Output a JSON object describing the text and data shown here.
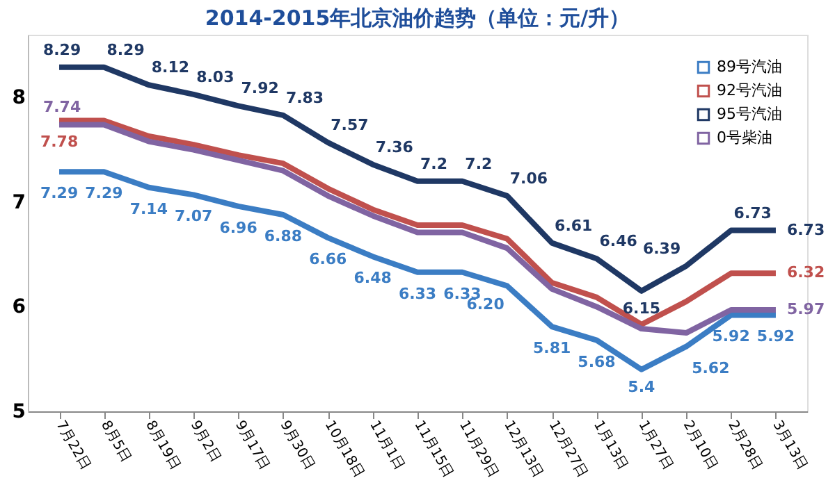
{
  "chart_data": {
    "type": "line",
    "title": "2014-2015年北京油价趋势（单位：元/升）",
    "categories": [
      "7月22日",
      "8月5日",
      "8月19日",
      "9月2日",
      "9月17日",
      "9月30日",
      "10月18日",
      "11月1日",
      "11月15日",
      "11月29日",
      "12月13日",
      "12月27日",
      "1月13日",
      "1月27日",
      "2月10日",
      "2月28日",
      "3月13日"
    ],
    "series": [
      {
        "name": "89号汽油",
        "color": "#3b7dc4",
        "values": [
          7.29,
          7.29,
          7.14,
          7.07,
          6.96,
          6.88,
          6.66,
          6.48,
          6.33,
          6.33,
          6.2,
          5.81,
          5.68,
          5.4,
          5.62,
          5.92,
          5.92
        ],
        "value_labels": [
          "7.29",
          "7.29",
          "7.14",
          "7.07",
          "6.96",
          "6.88",
          "6.66",
          "6.48",
          "6.33",
          "6.33",
          "6.20",
          "5.81",
          "5.68",
          "5.4",
          "5.62",
          "5.92",
          "5.92"
        ]
      },
      {
        "name": "92号汽油",
        "color": "#c0504d",
        "values": [
          7.78,
          7.78,
          7.63,
          7.55,
          7.45,
          7.37,
          7.13,
          6.93,
          6.78,
          6.78,
          6.65,
          6.23,
          6.09,
          5.83,
          6.05,
          6.32,
          6.32
        ],
        "value_labels": [
          "7.78",
          null,
          null,
          null,
          null,
          null,
          null,
          null,
          null,
          null,
          null,
          null,
          null,
          null,
          null,
          null,
          "6.32"
        ]
      },
      {
        "name": "95号汽油",
        "color": "#1f3864",
        "values": [
          8.29,
          8.29,
          8.12,
          8.03,
          7.92,
          7.83,
          7.57,
          7.36,
          7.2,
          7.2,
          7.06,
          6.61,
          6.46,
          6.15,
          6.39,
          6.73,
          6.73
        ],
        "value_labels": [
          "8.29",
          "8.29",
          "8.12",
          "8.03",
          "7.92",
          "7.83",
          "7.57",
          "7.36",
          "7.2",
          "7.2",
          "7.06",
          "6.61",
          "6.46",
          "6.15",
          "6.39",
          "6.73",
          "6.73"
        ]
      },
      {
        "name": "0号柴油",
        "color": "#8064a2",
        "values": [
          7.74,
          7.74,
          7.58,
          7.5,
          7.4,
          7.3,
          7.06,
          6.87,
          6.71,
          6.71,
          6.56,
          6.17,
          6.0,
          5.79,
          5.75,
          5.97,
          5.97
        ],
        "value_labels": [
          "7.74",
          null,
          null,
          null,
          null,
          null,
          null,
          null,
          null,
          null,
          null,
          null,
          null,
          null,
          null,
          null,
          "5.97"
        ]
      }
    ],
    "ylim": [
      5,
      8.6
    ],
    "yticks": [
      5,
      6,
      7,
      8
    ],
    "grid": false,
    "legend": "top right",
    "marker": "none",
    "line_style": "solid"
  }
}
